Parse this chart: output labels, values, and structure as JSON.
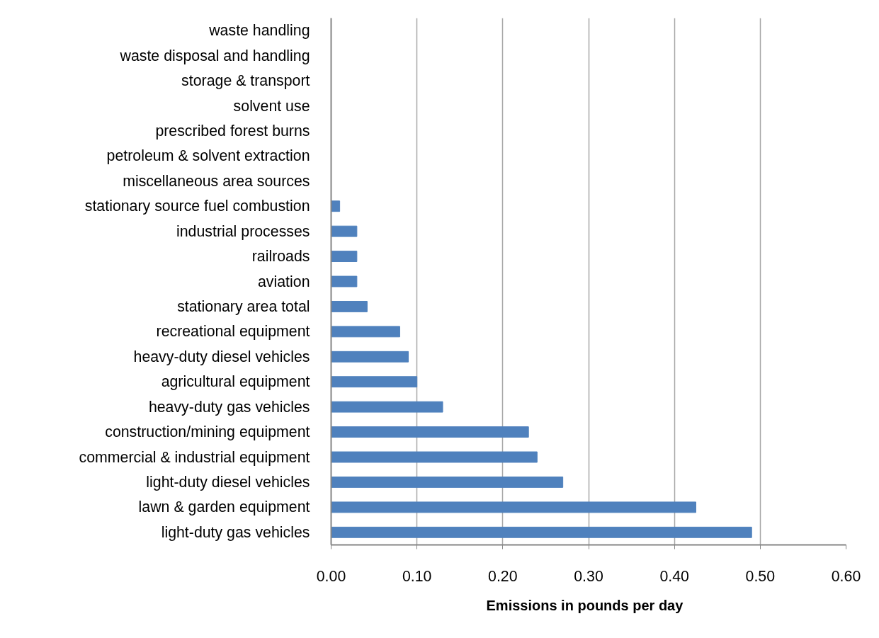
{
  "chart_data": {
    "type": "bar",
    "orientation": "horizontal",
    "xlabel": "Emissions  in pounds  per day",
    "categories": [
      "waste handling",
      "waste disposal and handling",
      "storage & transport",
      "solvent use",
      "prescribed forest burns",
      "petroleum & solvent extraction",
      "miscellaneous area sources",
      "stationary source fuel combustion",
      "industrial processes",
      "railroads",
      "aviation",
      "stationary area total",
      "recreational equipment",
      "heavy-duty diesel vehicles",
      "agricultural equipment",
      "heavy-duty gas vehicles",
      "construction/mining equipment",
      "commercial & industrial equipment",
      "light-duty diesel vehicles",
      "lawn & garden equipment",
      "light-duty gas vehicles"
    ],
    "values": [
      0,
      0,
      0,
      0,
      0,
      0,
      0,
      0.01,
      0.03,
      0.03,
      0.03,
      0.042,
      0.08,
      0.09,
      0.1,
      0.13,
      0.23,
      0.24,
      0.27,
      0.425,
      0.49
    ],
    "color": "#4f81bd",
    "xlim": [
      0,
      0.6
    ],
    "xticks": [
      {
        "value": 0,
        "label": "0.00"
      },
      {
        "value": 0.1,
        "label": "0.10"
      },
      {
        "value": 0.2,
        "label": "0.20"
      },
      {
        "value": 0.3,
        "label": "0.30"
      },
      {
        "value": 0.4,
        "label": "0.40"
      },
      {
        "value": 0.5,
        "label": "0.50"
      },
      {
        "value": 0.6,
        "label": "0.60"
      }
    ],
    "grid": "x"
  }
}
